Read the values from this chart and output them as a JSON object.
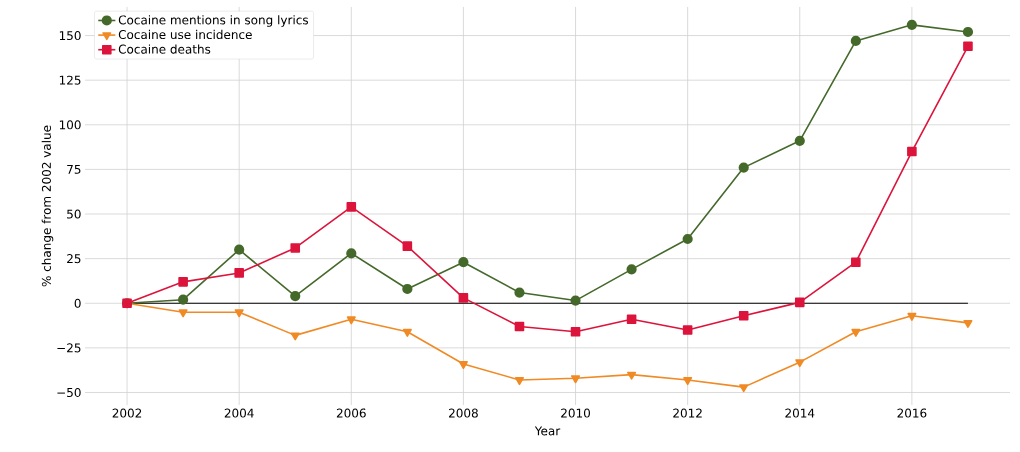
{
  "chart_data": {
    "type": "line",
    "xlabel": "Year",
    "ylabel": "% change from 2002 value",
    "x": [
      2002,
      2003,
      2004,
      2005,
      2006,
      2007,
      2008,
      2009,
      2010,
      2011,
      2012,
      2013,
      2014,
      2015,
      2016,
      2017
    ],
    "series": [
      {
        "name": "Cocaine mentions in song lyrics",
        "color": "#44692a",
        "marker": "circle",
        "values": [
          0,
          2,
          30,
          4,
          28,
          8,
          23,
          6,
          1.5,
          19,
          36,
          76,
          91,
          147,
          156,
          152
        ]
      },
      {
        "name": "Cocaine use incidence",
        "color": "#f08a24",
        "marker": "triangle",
        "values": [
          0,
          -5,
          -5,
          -18,
          -9,
          -16,
          -34,
          -43,
          -42,
          -40,
          -43,
          -47,
          -33,
          -16,
          -7,
          -11
        ]
      },
      {
        "name": "Cocaine deaths",
        "color": "#dc143c",
        "marker": "square",
        "values": [
          0,
          12,
          17,
          31,
          54,
          32,
          3,
          -13,
          -16,
          -9,
          -15,
          -7,
          0.5,
          23,
          85,
          144
        ]
      }
    ],
    "xlim": [
      2001.25,
      2017.75
    ],
    "ylim": [
      -57,
      166
    ],
    "xticks": [
      2002,
      2004,
      2006,
      2008,
      2010,
      2012,
      2014,
      2016
    ],
    "yticks": [
      {
        "value": -50,
        "label": "−50"
      },
      {
        "value": -25,
        "label": "−25"
      },
      0,
      25,
      50,
      75,
      100,
      125,
      150
    ],
    "ref_lines": [
      {
        "axis": "y",
        "value": 0,
        "color": "#000000"
      }
    ],
    "grid": true,
    "legend": "top left",
    "line_style": "solid"
  }
}
